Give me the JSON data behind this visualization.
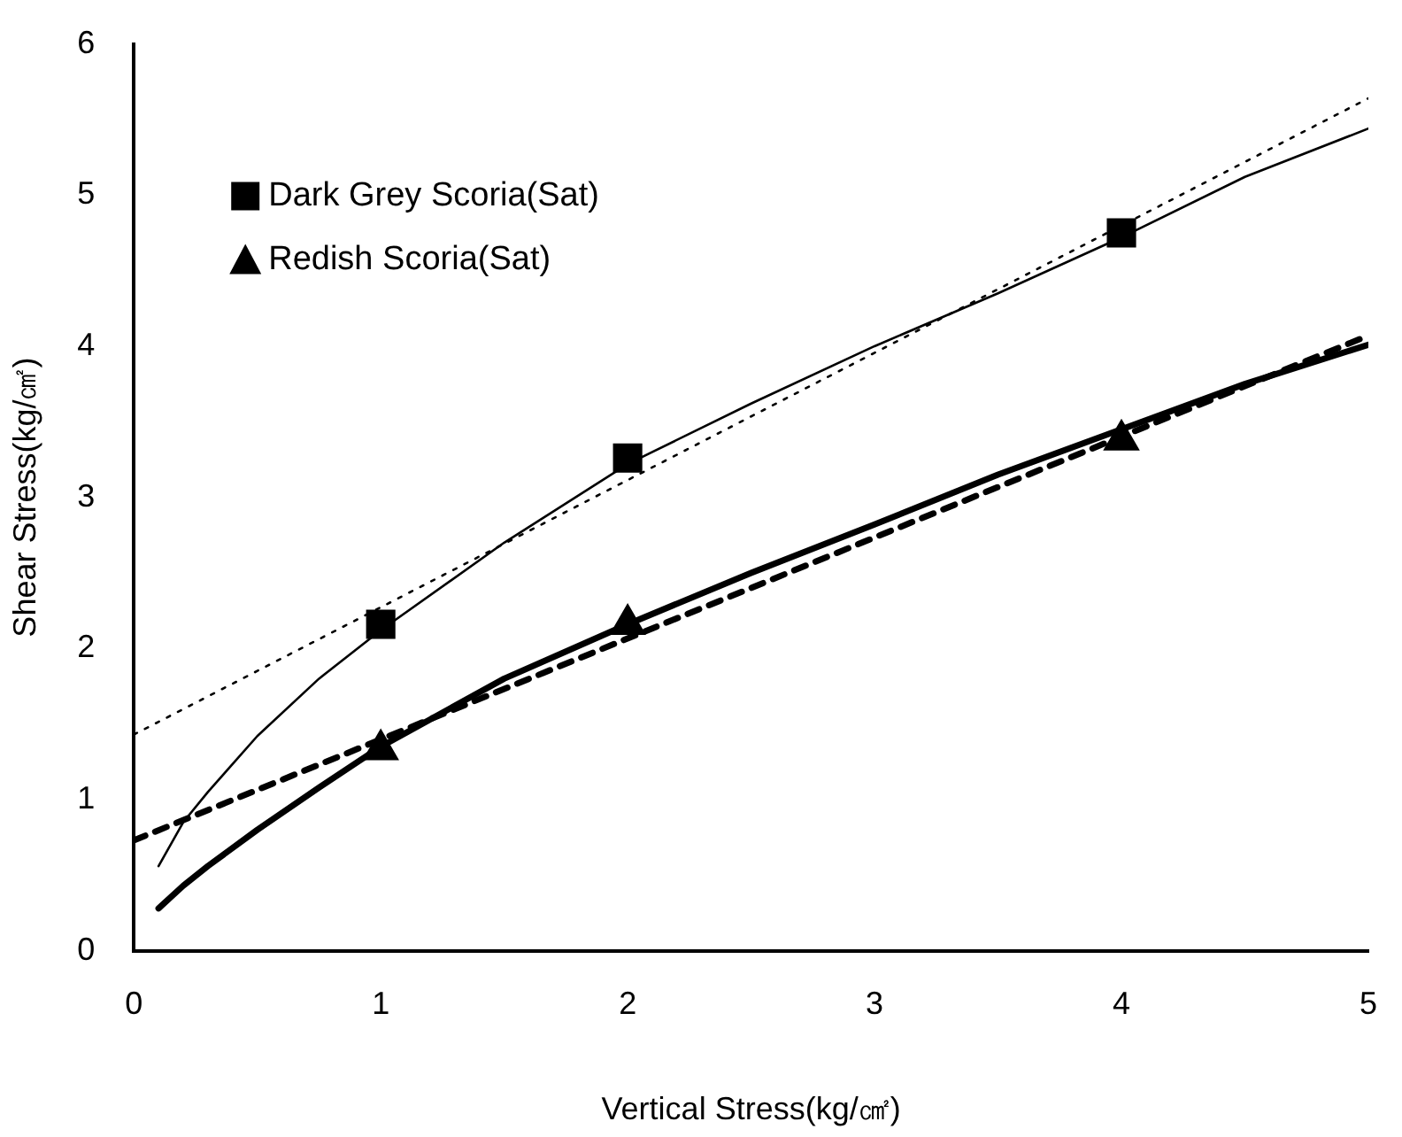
{
  "chart_data": {
    "type": "scatter",
    "xlabel": "Vertical Stress(kg/㎠)",
    "ylabel": "Shear Stress(kg/㎠)",
    "xlim": [
      0,
      5
    ],
    "xticks": [
      0,
      1,
      2,
      3,
      4,
      5
    ],
    "ylim": [
      0,
      6
    ],
    "yticks": [
      0,
      1,
      2,
      3,
      4,
      5,
      6
    ],
    "grid": false,
    "legend": "top left",
    "series": [
      {
        "type": "line",
        "color": "#000000",
        "line_style": "solid",
        "marker": "none",
        "x": [
          0.1,
          0.2,
          0.3,
          0.5,
          0.75,
          1,
          1.5,
          2,
          2.5,
          3,
          3.5,
          4,
          4.5,
          5
        ],
        "values": [
          0.56,
          0.85,
          1.05,
          1.42,
          1.8,
          2.12,
          2.7,
          3.22,
          3.62,
          4.0,
          4.35,
          4.72,
          5.12,
          5.44
        ]
      },
      {
        "type": "line",
        "color": "#000000",
        "line_style": "dotted",
        "marker": "none",
        "x": [
          0,
          5
        ],
        "values": [
          1.43,
          5.64
        ]
      },
      {
        "type": "line",
        "color": "#000000",
        "line_style": "solid",
        "marker": "none",
        "x": [
          0.1,
          0.2,
          0.3,
          0.5,
          0.75,
          1,
          1.5,
          2,
          2.5,
          3,
          3.5,
          4,
          4.5,
          5
        ],
        "values": [
          0.28,
          0.43,
          0.56,
          0.8,
          1.08,
          1.35,
          1.8,
          2.16,
          2.5,
          2.82,
          3.15,
          3.45,
          3.75,
          4.01
        ]
      },
      {
        "type": "line",
        "color": "#000000",
        "line_style": "dashed",
        "marker": "none",
        "x": [
          0,
          5
        ],
        "values": [
          0.73,
          4.07
        ]
      },
      {
        "type": "scatter",
        "name": "Dark Grey Scoria(Sat)",
        "color": "#000000",
        "marker": "square",
        "x": [
          1,
          2,
          4
        ],
        "values": [
          2.16,
          3.26,
          4.75
        ]
      },
      {
        "type": "scatter",
        "name": "Redish Scoria(Sat)",
        "color": "#000000",
        "marker": "triangle",
        "x": [
          1,
          2,
          4
        ],
        "values": [
          1.33,
          2.16,
          3.38
        ]
      }
    ]
  }
}
